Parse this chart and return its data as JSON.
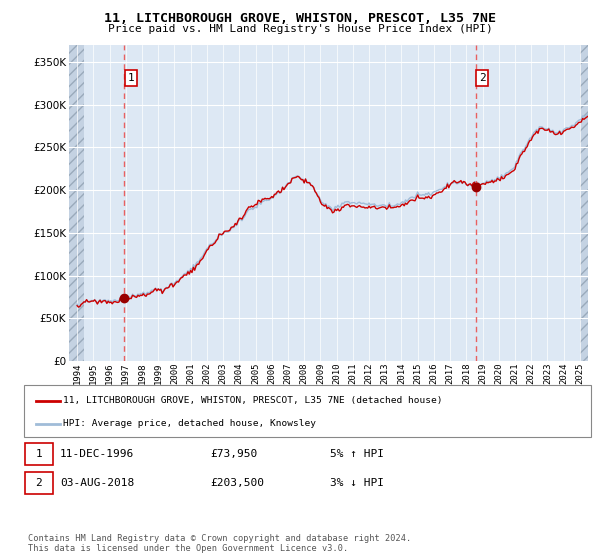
{
  "title1": "11, LITCHBOROUGH GROVE, WHISTON, PRESCOT, L35 7NE",
  "title2": "Price paid vs. HM Land Registry's House Price Index (HPI)",
  "legend1": "11, LITCHBOROUGH GROVE, WHISTON, PRESCOT, L35 7NE (detached house)",
  "legend2": "HPI: Average price, detached house, Knowsley",
  "purchase1_date": 1996.917,
  "purchase1_price": 73950,
  "purchase2_date": 2018.583,
  "purchase2_price": 203500,
  "line_color_property": "#cc0000",
  "line_color_hpi": "#a0bcd8",
  "marker_color": "#990000",
  "vline_color": "#e86060",
  "box_color": "#cc0000",
  "bg_color": "#dde8f4",
  "ylim_max": 370000,
  "ylim_min": 0,
  "xlim_min": 1993.5,
  "xlim_max": 2025.5,
  "hatch_left_end": 1994.42,
  "hatch_right_start": 2025.0
}
